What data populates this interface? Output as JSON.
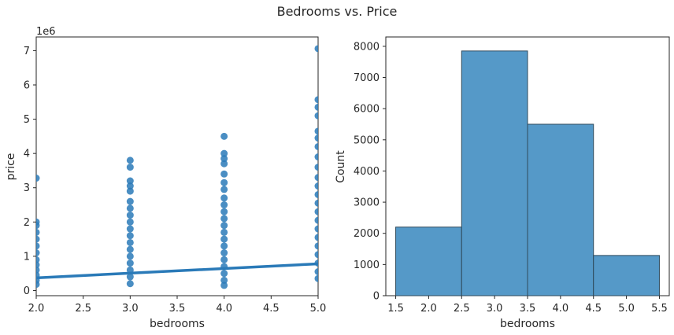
{
  "figure": {
    "title": "Bedrooms vs. Price"
  },
  "colors": {
    "primary": "#2a7ab8",
    "bar_fill": "#5599c8",
    "bar_edge": "#2f4a5c",
    "text": "#262626",
    "axis": "#262626"
  },
  "chart_data": [
    {
      "type": "scatter",
      "title": "",
      "xlabel": "bedrooms",
      "ylabel": "price",
      "y_offset_label": "1e6",
      "xlim": [
        2.0,
        5.0
      ],
      "ylim": [
        -0.15,
        7.4
      ],
      "xticks": [
        2.0,
        2.5,
        3.0,
        3.5,
        4.0,
        4.5,
        5.0
      ],
      "xtick_labels": [
        "2.0",
        "2.5",
        "3.0",
        "3.5",
        "4.0",
        "4.5",
        "5.0"
      ],
      "yticks": [
        0,
        1,
        2,
        3,
        4,
        5,
        6,
        7
      ],
      "ytick_labels": [
        "0",
        "1",
        "2",
        "3",
        "4",
        "5",
        "6",
        "7"
      ],
      "y_scale_note": "values in millions (1e6)",
      "series": [
        {
          "points": [
            {
              "x": 2,
              "y": 3.28
            },
            {
              "x": 2,
              "y": 2.0
            },
            {
              "x": 2,
              "y": 1.9
            },
            {
              "x": 2,
              "y": 1.7
            },
            {
              "x": 2,
              "y": 1.5
            },
            {
              "x": 2,
              "y": 1.3
            },
            {
              "x": 2,
              "y": 1.1
            },
            {
              "x": 2,
              "y": 0.9
            },
            {
              "x": 2,
              "y": 0.75
            },
            {
              "x": 2,
              "y": 0.6
            },
            {
              "x": 2,
              "y": 0.45
            },
            {
              "x": 2,
              "y": 0.3
            },
            {
              "x": 2,
              "y": 0.18
            },
            {
              "x": 3,
              "y": 3.8
            },
            {
              "x": 3,
              "y": 3.6
            },
            {
              "x": 3,
              "y": 3.2
            },
            {
              "x": 3,
              "y": 3.05
            },
            {
              "x": 3,
              "y": 2.9
            },
            {
              "x": 3,
              "y": 2.6
            },
            {
              "x": 3,
              "y": 2.4
            },
            {
              "x": 3,
              "y": 2.2
            },
            {
              "x": 3,
              "y": 2.0
            },
            {
              "x": 3,
              "y": 1.8
            },
            {
              "x": 3,
              "y": 1.6
            },
            {
              "x": 3,
              "y": 1.4
            },
            {
              "x": 3,
              "y": 1.2
            },
            {
              "x": 3,
              "y": 1.0
            },
            {
              "x": 3,
              "y": 0.8
            },
            {
              "x": 3,
              "y": 0.6
            },
            {
              "x": 3,
              "y": 0.4
            },
            {
              "x": 3,
              "y": 0.2
            },
            {
              "x": 4,
              "y": 4.5
            },
            {
              "x": 4,
              "y": 4.0
            },
            {
              "x": 4,
              "y": 3.85
            },
            {
              "x": 4,
              "y": 3.7
            },
            {
              "x": 4,
              "y": 3.4
            },
            {
              "x": 4,
              "y": 3.15
            },
            {
              "x": 4,
              "y": 2.95
            },
            {
              "x": 4,
              "y": 2.7
            },
            {
              "x": 4,
              "y": 2.5
            },
            {
              "x": 4,
              "y": 2.3
            },
            {
              "x": 4,
              "y": 2.1
            },
            {
              "x": 4,
              "y": 1.9
            },
            {
              "x": 4,
              "y": 1.7
            },
            {
              "x": 4,
              "y": 1.5
            },
            {
              "x": 4,
              "y": 1.3
            },
            {
              "x": 4,
              "y": 1.1
            },
            {
              "x": 4,
              "y": 0.9
            },
            {
              "x": 4,
              "y": 0.7
            },
            {
              "x": 4,
              "y": 0.5
            },
            {
              "x": 4,
              "y": 0.3
            },
            {
              "x": 4,
              "y": 0.15
            },
            {
              "x": 5,
              "y": 7.06
            },
            {
              "x": 5,
              "y": 5.57
            },
            {
              "x": 5,
              "y": 5.35
            },
            {
              "x": 5,
              "y": 5.1
            },
            {
              "x": 5,
              "y": 4.65
            },
            {
              "x": 5,
              "y": 4.45
            },
            {
              "x": 5,
              "y": 4.2
            },
            {
              "x": 5,
              "y": 3.9
            },
            {
              "x": 5,
              "y": 3.6
            },
            {
              "x": 5,
              "y": 3.3
            },
            {
              "x": 5,
              "y": 3.05
            },
            {
              "x": 5,
              "y": 2.8
            },
            {
              "x": 5,
              "y": 2.55
            },
            {
              "x": 5,
              "y": 2.3
            },
            {
              "x": 5,
              "y": 2.05
            },
            {
              "x": 5,
              "y": 1.8
            },
            {
              "x": 5,
              "y": 1.55
            },
            {
              "x": 5,
              "y": 1.3
            },
            {
              "x": 5,
              "y": 1.05
            },
            {
              "x": 5,
              "y": 0.8
            },
            {
              "x": 5,
              "y": 0.55
            },
            {
              "x": 5,
              "y": 0.35
            }
          ]
        }
      ],
      "regression_line": {
        "x": [
          2.0,
          5.0
        ],
        "y": [
          0.37,
          0.78
        ]
      }
    },
    {
      "type": "bar",
      "title": "",
      "xlabel": "bedrooms",
      "ylabel": "Count",
      "xlim": [
        1.35,
        5.65
      ],
      "ylim": [
        0,
        8300
      ],
      "xticks": [
        1.5,
        2.0,
        2.5,
        3.0,
        3.5,
        4.0,
        4.5,
        5.0,
        5.5
      ],
      "xtick_labels": [
        "1.5",
        "2.0",
        "2.5",
        "3.0",
        "3.5",
        "4.0",
        "4.5",
        "5.0",
        "5.5"
      ],
      "yticks": [
        0,
        1000,
        2000,
        3000,
        4000,
        5000,
        6000,
        7000,
        8000
      ],
      "ytick_labels": [
        "0",
        "1000",
        "2000",
        "3000",
        "4000",
        "5000",
        "6000",
        "7000",
        "8000"
      ],
      "bins": [
        {
          "left": 1.5,
          "right": 2.5,
          "count": 2200
        },
        {
          "left": 2.5,
          "right": 3.5,
          "count": 7850
        },
        {
          "left": 3.5,
          "right": 4.5,
          "count": 5500
        },
        {
          "left": 4.5,
          "right": 5.5,
          "count": 1290
        }
      ]
    }
  ]
}
